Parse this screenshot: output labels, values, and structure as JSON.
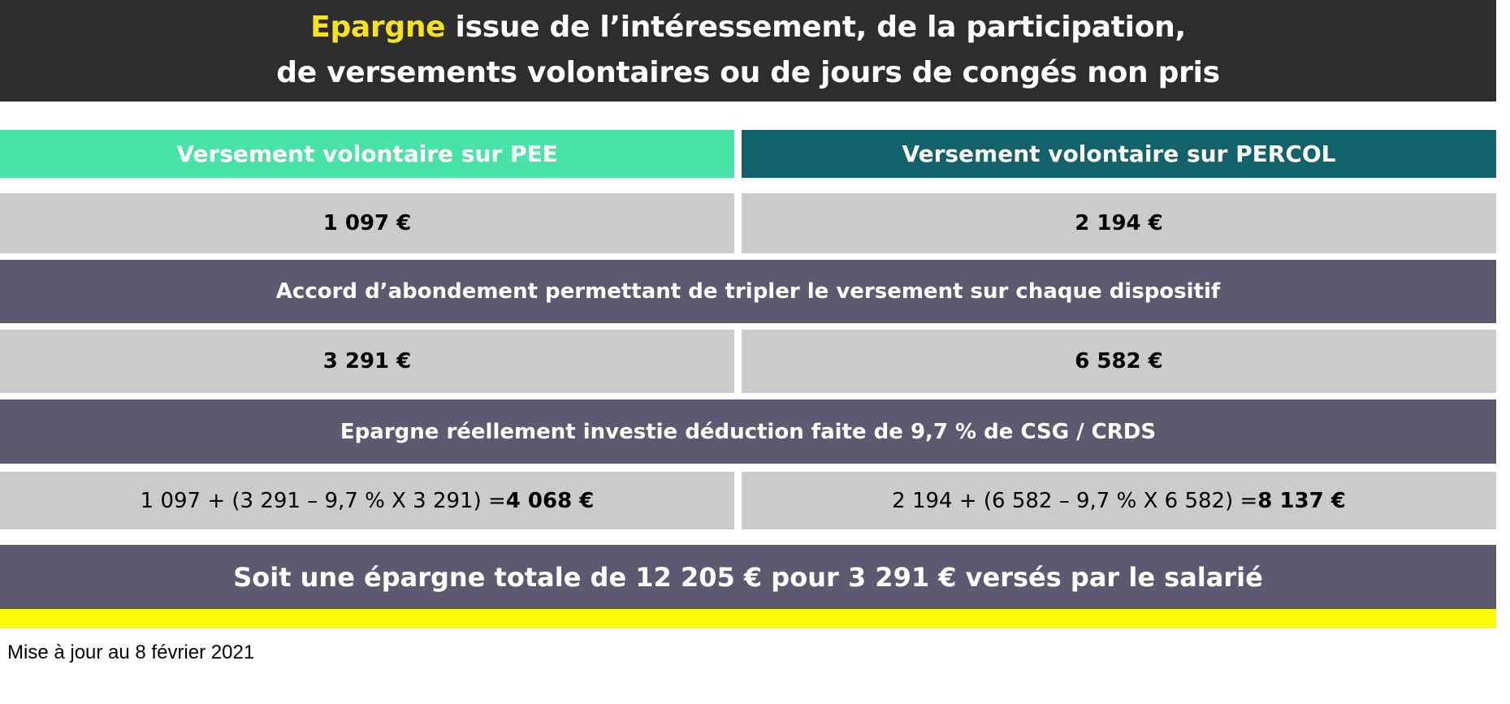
{
  "header": {
    "highlight": "Epargne",
    "line1_rest": " issue de l’intéressement, de la participation,",
    "line2": "de versements volontaires ou de jours de congés non pris",
    "highlight_color": "#f6e31a"
  },
  "columns": {
    "pee_header": "Versement volontaire sur PEE",
    "percol_header": "Versement volontaire sur PERCOL",
    "pee_color": "#47e3a9",
    "percol_color": "#11626b"
  },
  "rows": {
    "pee_deposit": "1 097 €",
    "percol_deposit": "2 194 €",
    "abondement_label": "Accord d’abondement permettant de tripler le versement sur chaque dispositif",
    "pee_abondement": "3 291 €",
    "percol_abondement": "6 582 €",
    "net_label": "Epargne réellement investie déduction faite de 9,7 % de CSG / CRDS",
    "pee_formula": "1 097 + (3 291 – 9,7 % X 3 291) = ",
    "pee_total": "4 068 €",
    "percol_formula": "2 194 + (6 582 – 9,7 % X 6 582) = ",
    "percol_total": "8 137 €"
  },
  "summary": "Soit une épargne totale de 12 205 € pour 3 291 € versés par le salarié",
  "footnote": "Mise à jour au 8 février 2021",
  "colors": {
    "header_bg": "#2d2d2d",
    "band_bg": "#5c5a71",
    "cell_bg": "#cbcbcb",
    "accent_bar": "#fcfc0a"
  }
}
